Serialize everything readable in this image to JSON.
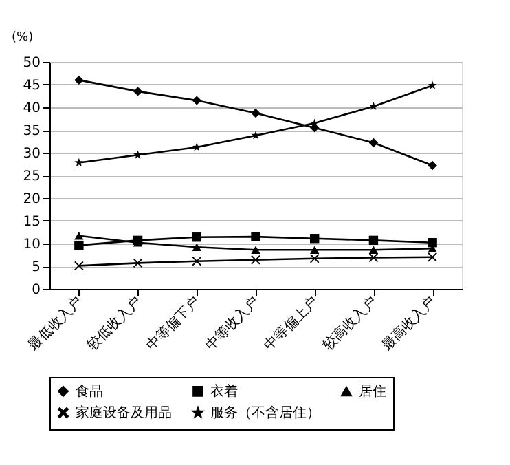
{
  "chart_data": {
    "type": "line",
    "ylabel": "(%)",
    "categories": [
      "最低收入户",
      "较低收入户",
      "中等偏下户",
      "中等收入户",
      "中等偏上户",
      "较高收入户",
      "最高收入户"
    ],
    "series": [
      {
        "name": "食品",
        "color": "#000000",
        "marker": "diamond",
        "values": [
          46.0,
          43.5,
          41.5,
          38.7,
          35.5,
          32.2,
          27.2
        ]
      },
      {
        "name": "衣着",
        "color": "#000000",
        "marker": "square",
        "values": [
          9.6,
          10.7,
          11.4,
          11.5,
          11.1,
          10.7,
          10.2
        ]
      },
      {
        "name": "居住",
        "color": "#000000",
        "marker": "triangle",
        "values": [
          11.7,
          10.2,
          9.2,
          8.6,
          8.6,
          8.6,
          8.9
        ]
      },
      {
        "name": "家庭设备及用品",
        "color": "#000000",
        "marker": "cross",
        "values": [
          5.1,
          5.7,
          6.1,
          6.4,
          6.7,
          6.9,
          7.0
        ]
      },
      {
        "name": "服务（不含居住）",
        "color": "#000000",
        "marker": "star",
        "values": [
          27.8,
          29.5,
          31.2,
          33.8,
          36.5,
          40.2,
          44.8
        ]
      }
    ],
    "ylim": [
      0,
      50
    ],
    "yticks": [
      0,
      5,
      10,
      15,
      20,
      25,
      30,
      35,
      40,
      45,
      50
    ],
    "grid": "y",
    "legend": "bottom",
    "line_style": "solid"
  }
}
